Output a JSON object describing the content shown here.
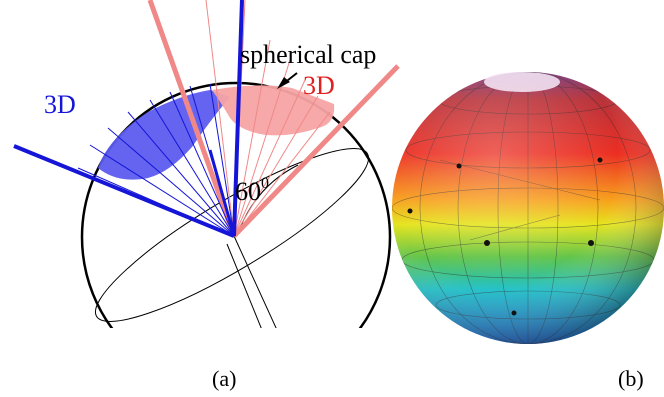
{
  "panel_a": {
    "annotation_cap": "spherical cap",
    "label_3d_red": "3D",
    "label_3d_blue": "3D",
    "angle_label": "60",
    "angle_superscript": "0",
    "caption": "(a)"
  },
  "panel_b": {
    "caption": "(b)"
  },
  "colors": {
    "blue": "#1515d8",
    "blue_cap": "#5c5cf0",
    "red": "#f08888",
    "red_cap": "#f7a3a3",
    "red_text": "#e02020",
    "outline": "#000000"
  }
}
